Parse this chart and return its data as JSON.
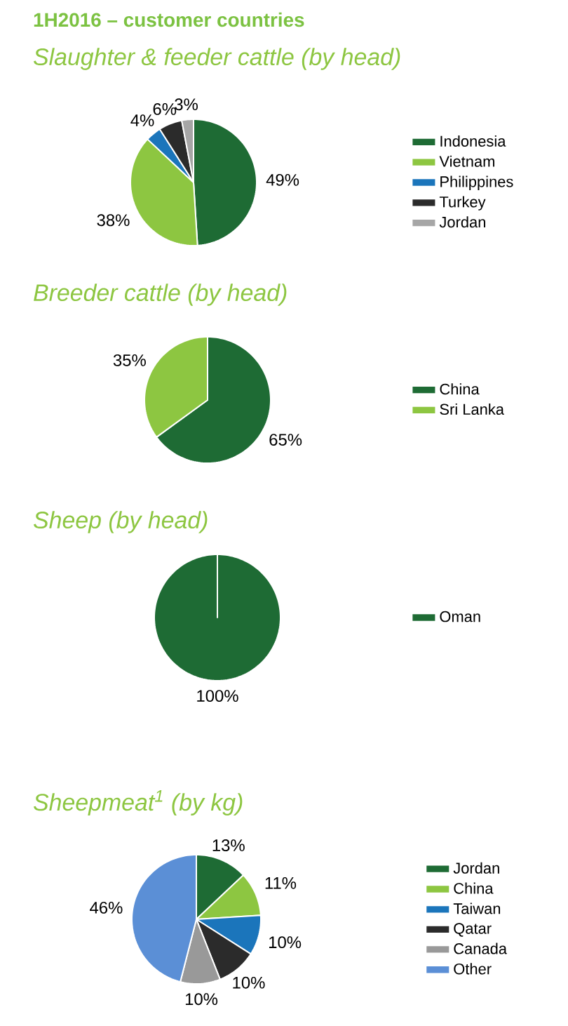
{
  "chart_data": [
    {
      "type": "pie",
      "title": "1H2016 – customer countries",
      "subtitle": "Slaughter & feeder cattle (by head)",
      "categories": [
        "Indonesia",
        "Vietnam",
        "Philippines",
        "Turkey",
        "Jordan"
      ],
      "values": [
        49,
        38,
        4,
        6,
        3
      ],
      "colors": [
        "#1e6b34",
        "#8dc641",
        "#1b75bb",
        "#2b2b2b",
        "#a6a6a6"
      ],
      "value_labels": [
        "49%",
        "38%",
        "4%",
        "6%",
        "3%"
      ],
      "legend": "right"
    },
    {
      "type": "pie",
      "subtitle": "Breeder cattle (by head)",
      "categories": [
        "China",
        "Sri Lanka"
      ],
      "values": [
        65,
        35
      ],
      "colors": [
        "#1e6b34",
        "#8dc641"
      ],
      "value_labels": [
        "65%",
        "35%"
      ],
      "legend": "right"
    },
    {
      "type": "pie",
      "subtitle": "Sheep (by head)",
      "categories": [
        "Oman"
      ],
      "values": [
        100
      ],
      "colors": [
        "#1e6b34"
      ],
      "value_labels": [
        "100%"
      ],
      "legend": "right"
    },
    {
      "type": "pie",
      "subtitle": "Sheepmeat$^{1}$ (by kg)",
      "categories": [
        "Jordan",
        "China",
        "Taiwan",
        "Qatar",
        "Canada",
        "Other"
      ],
      "values": [
        13,
        11,
        10,
        10,
        10,
        46
      ],
      "colors": [
        "#1e6b34",
        "#8dc641",
        "#1b75bb",
        "#2b2b2b",
        "#999999",
        "#5b8fd6"
      ],
      "value_labels": [
        "13%",
        "11%",
        "10%",
        "10%",
        "10%",
        "46%"
      ],
      "legend": "right"
    }
  ]
}
